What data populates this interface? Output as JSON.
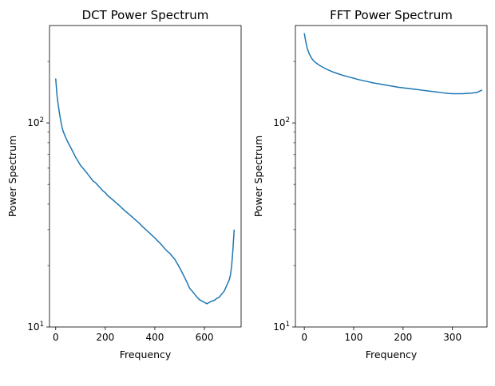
{
  "chart_data": [
    {
      "type": "line",
      "title": "DCT Power Spectrum",
      "xlabel": "Frequency",
      "ylabel": "Power Spectrum",
      "yscale": "log",
      "xlim": [
        -25,
        748
      ],
      "ylim": [
        10,
        300
      ],
      "xticks": [
        0,
        200,
        400,
        600
      ],
      "yticks": [
        {
          "value": 10,
          "base": "10",
          "exp": "1"
        },
        {
          "value": 100,
          "base": "10",
          "exp": "2"
        }
      ],
      "grid": false,
      "color": "#1f77b4",
      "series": [
        {
          "x": [
            0,
            5,
            10,
            15,
            20,
            25,
            30,
            40,
            50,
            60,
            70,
            80,
            90,
            100,
            110,
            120,
            130,
            140,
            150,
            160,
            170,
            180,
            190,
            200,
            210,
            220,
            230,
            240,
            250,
            260,
            270,
            280,
            290,
            300,
            310,
            320,
            330,
            340,
            350,
            360,
            370,
            380,
            390,
            400,
            410,
            420,
            430,
            440,
            450,
            460,
            470,
            480,
            490,
            500,
            510,
            520,
            530,
            540,
            550,
            560,
            570,
            580,
            590,
            600,
            610,
            620,
            630,
            640,
            650,
            660,
            670,
            680,
            690,
            700,
            705,
            710,
            715,
            720
          ],
          "y": [
            165,
            138,
            123,
            112,
            103,
            96,
            91,
            85,
            80,
            76,
            72,
            68,
            65,
            62,
            60,
            58,
            56,
            54,
            52,
            51,
            49.5,
            48,
            46.5,
            45.5,
            44,
            43,
            42,
            41,
            40,
            39,
            38,
            37,
            36.2,
            35.3,
            34.5,
            33.6,
            32.8,
            32,
            31,
            30.3,
            29.5,
            28.8,
            28,
            27.3,
            26.5,
            25.8,
            25,
            24.2,
            23.5,
            23,
            22.2,
            21.5,
            20.5,
            19.5,
            18.5,
            17.5,
            16.5,
            15.5,
            15,
            14.5,
            14,
            13.6,
            13.4,
            13.2,
            13,
            13.2,
            13.4,
            13.5,
            13.8,
            14,
            14.5,
            15,
            16,
            17,
            18,
            20,
            24,
            30
          ]
        }
      ]
    },
    {
      "type": "line",
      "title": "FFT Power Spectrum",
      "xlabel": "Frequency",
      "ylabel": "Power Spectrum",
      "yscale": "log",
      "xlim": [
        -18,
        370
      ],
      "ylim": [
        10,
        300
      ],
      "xticks": [
        0,
        100,
        200,
        300
      ],
      "yticks": [
        {
          "value": 10,
          "base": "10",
          "exp": "1"
        },
        {
          "value": 100,
          "base": "10",
          "exp": "2"
        }
      ],
      "grid": false,
      "color": "#1f77b4",
      "series": [
        {
          "x": [
            0,
            3,
            6,
            10,
            15,
            20,
            30,
            40,
            50,
            60,
            70,
            80,
            90,
            100,
            110,
            120,
            130,
            140,
            150,
            160,
            170,
            180,
            190,
            200,
            210,
            220,
            230,
            240,
            250,
            260,
            270,
            280,
            290,
            300,
            310,
            320,
            330,
            340,
            350,
            355,
            360
          ],
          "y": [
            275,
            250,
            232,
            218,
            207,
            200,
            192,
            186,
            181,
            177,
            173.5,
            170.5,
            168,
            165.5,
            163,
            161,
            159,
            157,
            155.5,
            154,
            152.5,
            151,
            149.5,
            148.5,
            147.5,
            146.5,
            145.5,
            144.5,
            143.5,
            142.5,
            141.5,
            140.5,
            139.5,
            139,
            139,
            139,
            139.5,
            140,
            141,
            143,
            145
          ]
        }
      ]
    }
  ]
}
